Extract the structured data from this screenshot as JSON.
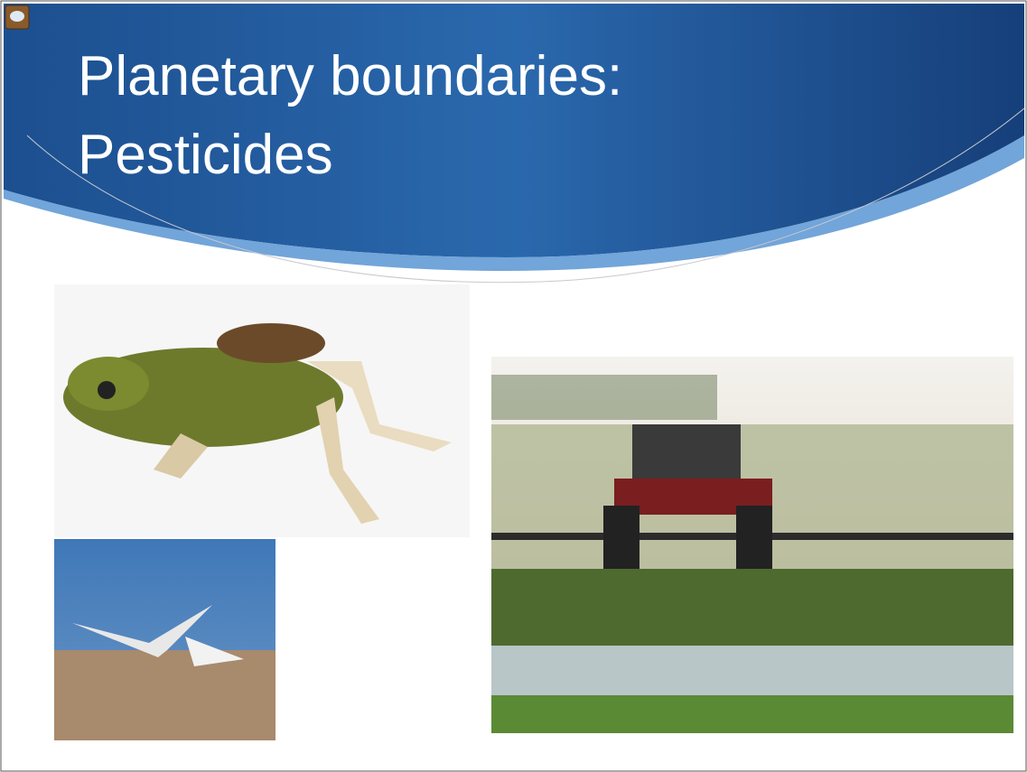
{
  "slide": {
    "title_lines": [
      "Planetary boundaries:",
      "Pesticides"
    ]
  }
}
